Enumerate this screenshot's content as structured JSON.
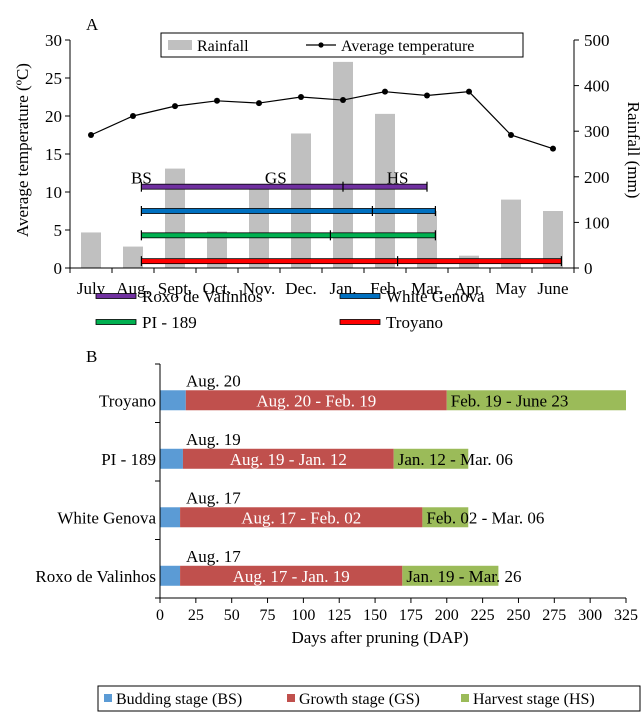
{
  "panel_a_label": "A",
  "panel_b_label": "B",
  "colors": {
    "rainfall": "#c0c0c0",
    "temperature": "#000000",
    "roxo": "#7030a0",
    "white_genova": "#0070c0",
    "pi189": "#00b050",
    "troyano": "#ff0000",
    "budding": "#5b9bd5",
    "growth": "#c0504d",
    "harvest": "#9bbb59"
  },
  "chart_data": [
    {
      "type": "bar",
      "panel": "A",
      "categories": [
        "July",
        "Aug.",
        "Sept.",
        "Oct.",
        "Nov.",
        "Dec.",
        "Jan.",
        "Feb.",
        "Mar.",
        "Apr.",
        "May",
        "June"
      ],
      "series": [
        {
          "name": "Rainfall",
          "axis": "right",
          "kind": "bar",
          "values": [
            78,
            47,
            218,
            80,
            183,
            295,
            452,
            338,
            125,
            27,
            150,
            125
          ]
        },
        {
          "name": "Average temperature",
          "axis": "left",
          "kind": "line-marker",
          "values": [
            17.5,
            20.0,
            21.3,
            22.0,
            21.7,
            22.5,
            22.1,
            23.2,
            22.7,
            23.2,
            17.5,
            15.7
          ]
        }
      ],
      "ylabel": "Average temperature (ºC)",
      "y2label": "Rainfall (mm)",
      "ylim": [
        0,
        30
      ],
      "yticks": [
        "0",
        "5",
        "10",
        "15",
        "20",
        "25",
        "30"
      ],
      "y2lim": [
        0,
        500
      ],
      "y2ticks": [
        "0",
        "100",
        "200",
        "300",
        "400",
        "500"
      ],
      "legend": {
        "position": "top",
        "entries": [
          "Rainfall",
          "Average temperature"
        ]
      },
      "stage_labels": [
        "BS",
        "GS",
        "HS"
      ],
      "cultivar_spans": [
        {
          "name": "Roxo de Valinhos",
          "color_key": "roxo",
          "start_month": 1.2,
          "end_month": 8.0,
          "ticks": [
            1.2,
            6.0,
            8.0
          ],
          "y": 10.7
        },
        {
          "name": "White Genova",
          "color_key": "white_genova",
          "start_month": 1.2,
          "end_month": 8.2,
          "ticks": [
            1.2,
            6.7,
            8.2
          ],
          "y": 7.5
        },
        {
          "name": "PI - 189",
          "color_key": "pi189",
          "start_month": 1.2,
          "end_month": 8.2,
          "ticks": [
            1.2,
            5.7,
            8.2
          ],
          "y": 4.3
        },
        {
          "name": "Troyano",
          "color_key": "troyano",
          "start_month": 1.2,
          "end_month": 11.2,
          "ticks": [
            1.2,
            7.3,
            11.2
          ],
          "y": 0.9
        }
      ],
      "grid": false
    },
    {
      "type": "bar",
      "panel": "B",
      "orientation": "horizontal",
      "stacked": true,
      "categories": [
        "Troyano",
        "PI - 189",
        "White Genova",
        "Roxo de Valinhos"
      ],
      "series": [
        {
          "name": "Budding stage (BS)",
          "color_key": "budding",
          "values": [
            18,
            16,
            14,
            14
          ],
          "labels": [
            "Aug. 20",
            "Aug. 19",
            "Aug. 17",
            "Aug. 17"
          ]
        },
        {
          "name": "Growth stage (GS)",
          "color_key": "growth",
          "values": [
            182,
            147,
            169,
            155
          ],
          "labels": [
            "Aug. 20 - Feb. 19",
            "Aug. 19 - Jan. 12",
            "Aug. 17 - Feb. 02",
            "Aug. 17 - Jan. 19"
          ]
        },
        {
          "name": "Harvest stage (HS)",
          "color_key": "harvest",
          "values": [
            125,
            52,
            32,
            67
          ],
          "labels": [
            "Feb. 19 - June 23",
            "Jan. 12 - Mar. 06",
            "Feb. 02 - Mar. 06",
            "Jan. 19 - Mar. 26"
          ]
        }
      ],
      "xlabel": "Days after pruning (DAP)",
      "xlim": [
        0,
        325
      ],
      "xticks": [
        "0",
        "25",
        "50",
        "75",
        "100",
        "125",
        "150",
        "175",
        "200",
        "225",
        "250",
        "275",
        "300",
        "325"
      ],
      "legend": {
        "position": "bottom",
        "entries": [
          "Budding stage (BS)",
          "Growth stage (GS)",
          "Harvest stage (HS)"
        ]
      },
      "grid": false
    }
  ]
}
